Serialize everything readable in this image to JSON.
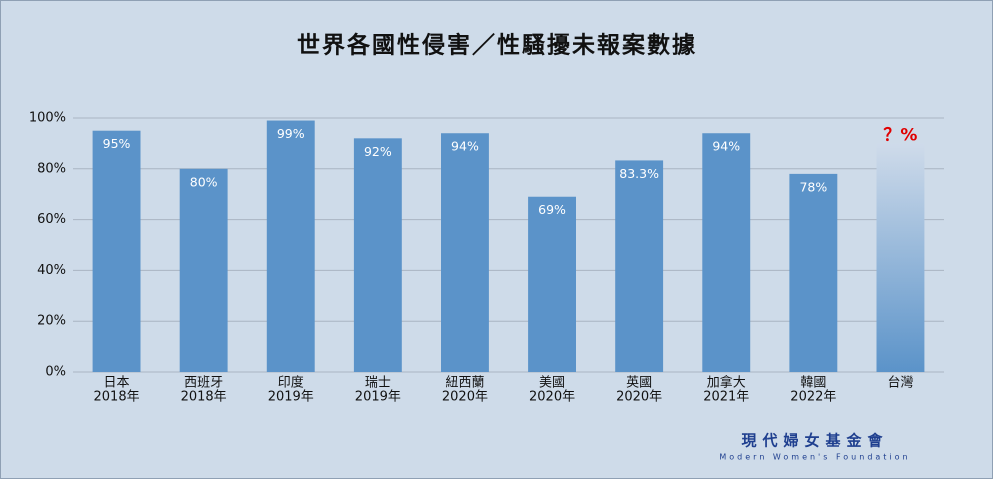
{
  "chart_data": {
    "type": "bar",
    "title": "世界各國性侵害／性騷擾未報案數據",
    "categories": [
      "日本",
      "西班牙",
      "印度",
      "瑞士",
      "紐西蘭",
      "美國",
      "英國",
      "加拿大",
      "韓國",
      "台灣"
    ],
    "years": [
      "2018年",
      "2018年",
      "2019年",
      "2019年",
      "2020年",
      "2020年",
      "2020年",
      "2021年",
      "2022年",
      null
    ],
    "values": [
      95,
      80,
      99,
      92,
      94,
      69,
      83.3,
      94,
      78,
      90
    ],
    "value_labels": [
      "95%",
      "80%",
      "99%",
      "92%",
      "94%",
      "69%",
      "83.3%",
      "94%",
      "78%",
      "？%"
    ],
    "color": "#5b93c9",
    "ylim": [
      0,
      100
    ],
    "yticks": [
      {
        "value": 0,
        "label": "0%"
      },
      {
        "value": 20,
        "label": "20%"
      },
      {
        "value": 40,
        "label": "40%"
      },
      {
        "value": 60,
        "label": "60%"
      },
      {
        "value": 80,
        "label": "80%"
      },
      {
        "value": 100,
        "label": "100%"
      }
    ],
    "grid": true
  },
  "footer": {
    "name": "現代婦女基金會",
    "english": "Modern Women's Foundation"
  }
}
